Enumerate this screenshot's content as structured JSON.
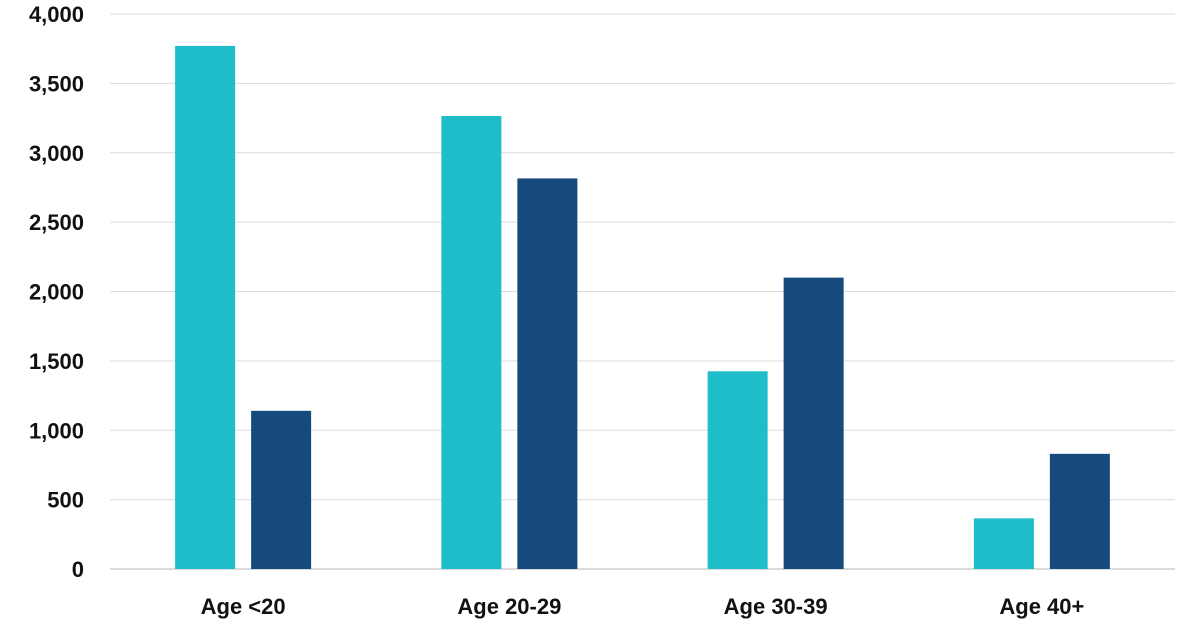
{
  "chart_data": {
    "type": "bar",
    "title": "",
    "xlabel": "",
    "ylabel": "",
    "categories": [
      "Age <20",
      "Age 20-29",
      "Age 30-39",
      "Age 40+"
    ],
    "series": [
      {
        "values": [
          3770,
          3265,
          1425,
          365
        ],
        "color": "#1ebdc9"
      },
      {
        "values": [
          1140,
          2815,
          2100,
          830
        ],
        "color": "#174a7c"
      }
    ],
    "ylim": [
      0,
      4000
    ],
    "yticks": [
      0,
      500,
      1000,
      1500,
      2000,
      2500,
      3000,
      3500,
      4000
    ],
    "ytick_labels": [
      "0",
      "500",
      "1,000",
      "1,500",
      "2,000",
      "2,500",
      "3,000",
      "3,500",
      "4,000"
    ],
    "grid": true,
    "legend": "none"
  }
}
